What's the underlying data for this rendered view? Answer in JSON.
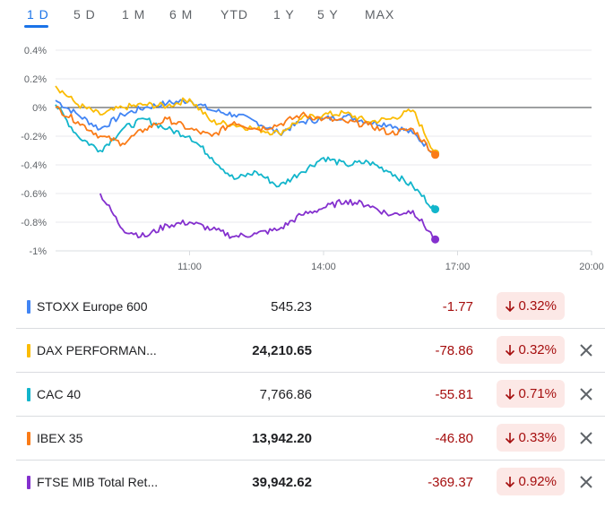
{
  "tabs": [
    {
      "label": "1 D",
      "active": true
    },
    {
      "label": "5 D",
      "active": false
    },
    {
      "label": "1 M",
      "active": false
    },
    {
      "label": "6 M",
      "active": false
    },
    {
      "label": "YTD",
      "active": false
    },
    {
      "label": "1 Y",
      "active": false
    },
    {
      "label": "5 Y",
      "active": false
    },
    {
      "label": "MAX",
      "active": false
    }
  ],
  "chart_data": {
    "type": "line",
    "y_ticks": [
      "0.4%",
      "0.2%",
      "0%",
      "-0.2%",
      "-0.4%",
      "-0.6%",
      "-0.8%",
      "-1%"
    ],
    "x_ticks": [
      "11:00",
      "14:00",
      "17:00",
      "20:00"
    ],
    "ylim": [
      -1.0,
      0.4
    ],
    "xlim": [
      "08:00",
      "20:00"
    ],
    "grid": true,
    "baseline": 0,
    "series": [
      {
        "name": "STOXX Europe 600",
        "color": "#4285f4",
        "x": [
          "08:00",
          "08:30",
          "09:00",
          "09:30",
          "10:00",
          "10:30",
          "11:00",
          "11:30",
          "12:00",
          "12:30",
          "13:00",
          "13:30",
          "14:00",
          "14:30",
          "15:00",
          "15:30",
          "16:00",
          "16:30"
        ],
        "y": [
          0.05,
          -0.05,
          -0.15,
          -0.05,
          0.0,
          0.03,
          0.05,
          -0.02,
          -0.05,
          -0.1,
          -0.18,
          -0.1,
          -0.08,
          -0.06,
          -0.1,
          -0.12,
          -0.18,
          -0.32
        ]
      },
      {
        "name": "DAX PERFORMAN...",
        "color": "#fbbc04",
        "x": [
          "08:00",
          "08:30",
          "09:00",
          "09:30",
          "10:00",
          "10:30",
          "11:00",
          "11:30",
          "12:00",
          "12:30",
          "13:00",
          "13:30",
          "14:00",
          "14:30",
          "15:00",
          "15:30",
          "16:00",
          "16:30"
        ],
        "y": [
          0.15,
          0.02,
          -0.05,
          0.0,
          0.02,
          0.01,
          0.06,
          -0.1,
          -0.12,
          -0.15,
          -0.18,
          -0.08,
          -0.05,
          -0.04,
          -0.1,
          -0.08,
          -0.02,
          -0.32
        ]
      },
      {
        "name": "CAC 40",
        "color": "#12b5cb",
        "x": [
          "08:00",
          "08:30",
          "09:00",
          "09:30",
          "10:00",
          "10:30",
          "11:00",
          "11:30",
          "12:00",
          "12:30",
          "13:00",
          "13:30",
          "14:00",
          "14:30",
          "15:00",
          "15:30",
          "16:00",
          "16:30"
        ],
        "y": [
          0.02,
          -0.2,
          -0.3,
          -0.15,
          -0.08,
          -0.15,
          -0.2,
          -0.35,
          -0.5,
          -0.45,
          -0.55,
          -0.45,
          -0.35,
          -0.4,
          -0.38,
          -0.45,
          -0.55,
          -0.71
        ]
      },
      {
        "name": "IBEX 35",
        "color": "#fa7b17",
        "x": [
          "08:00",
          "08:30",
          "09:00",
          "09:30",
          "10:00",
          "10:30",
          "11:00",
          "11:30",
          "12:00",
          "12:30",
          "13:00",
          "13:30",
          "14:00",
          "14:30",
          "15:00",
          "15:30",
          "16:00",
          "16:30"
        ],
        "y": [
          0.0,
          -0.1,
          -0.2,
          -0.25,
          -0.15,
          -0.08,
          -0.15,
          -0.2,
          -0.1,
          -0.15,
          -0.12,
          -0.05,
          -0.08,
          -0.1,
          -0.12,
          -0.18,
          -0.15,
          -0.33
        ]
      },
      {
        "name": "FTSE MIB Total Ret...",
        "color": "#8430ce",
        "x": [
          "09:00",
          "09:30",
          "10:00",
          "10:30",
          "11:00",
          "11:30",
          "12:00",
          "12:30",
          "13:00",
          "13:30",
          "14:00",
          "14:30",
          "15:00",
          "15:30",
          "16:00",
          "16:30"
        ],
        "y": [
          -0.6,
          -0.85,
          -0.9,
          -0.82,
          -0.8,
          -0.85,
          -0.9,
          -0.88,
          -0.85,
          -0.75,
          -0.7,
          -0.65,
          -0.68,
          -0.75,
          -0.72,
          -0.92
        ]
      }
    ]
  },
  "rows": [
    {
      "name": "STOXX Europe 600",
      "color": "#4285f4",
      "price": "545.23",
      "change": "-1.77",
      "pct": "0.32%",
      "removable": false
    },
    {
      "name": "DAX PERFORMAN...",
      "color": "#fbbc04",
      "price": "24,210.65",
      "change": "-78.86",
      "pct": "0.32%",
      "removable": true
    },
    {
      "name": "CAC 40",
      "color": "#12b5cb",
      "price": "7,766.86",
      "change": "-55.81",
      "pct": "0.71%",
      "removable": true
    },
    {
      "name": "IBEX 35",
      "color": "#fa7b17",
      "price": "13,942.20",
      "change": "-46.80",
      "pct": "0.33%",
      "removable": true
    },
    {
      "name": "FTSE MIB Total Ret...",
      "color": "#8430ce",
      "price": "39,942.62",
      "change": "-369.37",
      "pct": "0.92%",
      "removable": true
    }
  ],
  "icons": {
    "down_arrow": "arrow-down-icon",
    "remove": "close-icon"
  }
}
